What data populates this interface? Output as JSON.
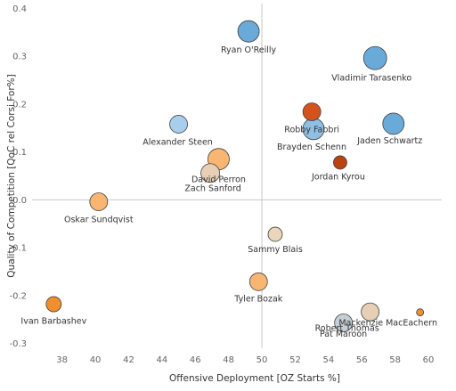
{
  "chart_data": {
    "type": "scatter",
    "title": "",
    "xlabel": "Offensive Deployment [OZ Starts %]",
    "ylabel": "Quality of Competition [QoC rel Corsi For%]",
    "xlim": [
      36.2,
      60.8
    ],
    "ylim": [
      -0.31,
      0.41
    ],
    "xticks": [
      "38",
      "40",
      "42",
      "44",
      "46",
      "48",
      "50",
      "52",
      "54",
      "56",
      "58",
      "60"
    ],
    "yticks": [
      "0.4",
      "0.3",
      "0.2",
      "0.1",
      "0.0",
      "-0.1",
      "-0.2",
      "-0.3"
    ],
    "reference_lines": {
      "x": 50,
      "y": 0
    },
    "grid": false,
    "points": [
      {
        "name": "Ryan O'Reilly",
        "x": 49.2,
        "y": 0.352,
        "size": 12,
        "color": "#6aaad8"
      },
      {
        "name": "Vladimir Tarasenko",
        "x": 56.8,
        "y": 0.296,
        "size": 13,
        "color": "#6aaad8"
      },
      {
        "name": "Robby Fabbri",
        "x": 53.0,
        "y": 0.184,
        "size": 10,
        "color": "#d4521c"
      },
      {
        "name": "Alexander Steen",
        "x": 45.0,
        "y": 0.158,
        "size": 10,
        "color": "#a9cdec"
      },
      {
        "name": "Jaden Schwartz",
        "x": 57.9,
        "y": 0.159,
        "size": 12,
        "color": "#6aaad8"
      },
      {
        "name": "Brayden Schenn",
        "x": 53.1,
        "y": 0.148,
        "size": 12,
        "color": "#8fbfe3"
      },
      {
        "name": "Jordan Kyrou",
        "x": 54.7,
        "y": 0.078,
        "size": 7.5,
        "color": "#b8440f"
      },
      {
        "name": "David Perron",
        "x": 47.4,
        "y": 0.085,
        "size": 12,
        "color": "#f8b672"
      },
      {
        "name": "Zach Sanford",
        "x": 46.9,
        "y": 0.056,
        "size": 10.5,
        "color": "#e6cfb4"
      },
      {
        "name": "Oskar Sundqvist",
        "x": 40.2,
        "y": -0.004,
        "size": 10,
        "color": "#f8b672"
      },
      {
        "name": "Sammy Blais",
        "x": 50.8,
        "y": -0.072,
        "size": 8,
        "color": "#ead6bd"
      },
      {
        "name": "Tyler Bozak",
        "x": 49.8,
        "y": -0.171,
        "size": 10,
        "color": "#f8b672"
      },
      {
        "name": "Ivan Barbashev",
        "x": 37.5,
        "y": -0.218,
        "size": 8.5,
        "color": "#f28e2c"
      },
      {
        "name": "Mackenzie MacEachern",
        "x": 59.5,
        "y": -0.235,
        "size": 4,
        "color": "#f28e2c"
      },
      {
        "name": "Pat Maroon",
        "x": 56.5,
        "y": -0.234,
        "size": 10,
        "color": "#e6cfb4"
      },
      {
        "name": "Robert Thomas",
        "x": 54.9,
        "y": -0.257,
        "size": 10,
        "color": "#c5cfd5"
      }
    ]
  },
  "colors": {
    "outline": "#404040",
    "reference_line": "#c8c8c8",
    "tick": "#666666"
  }
}
